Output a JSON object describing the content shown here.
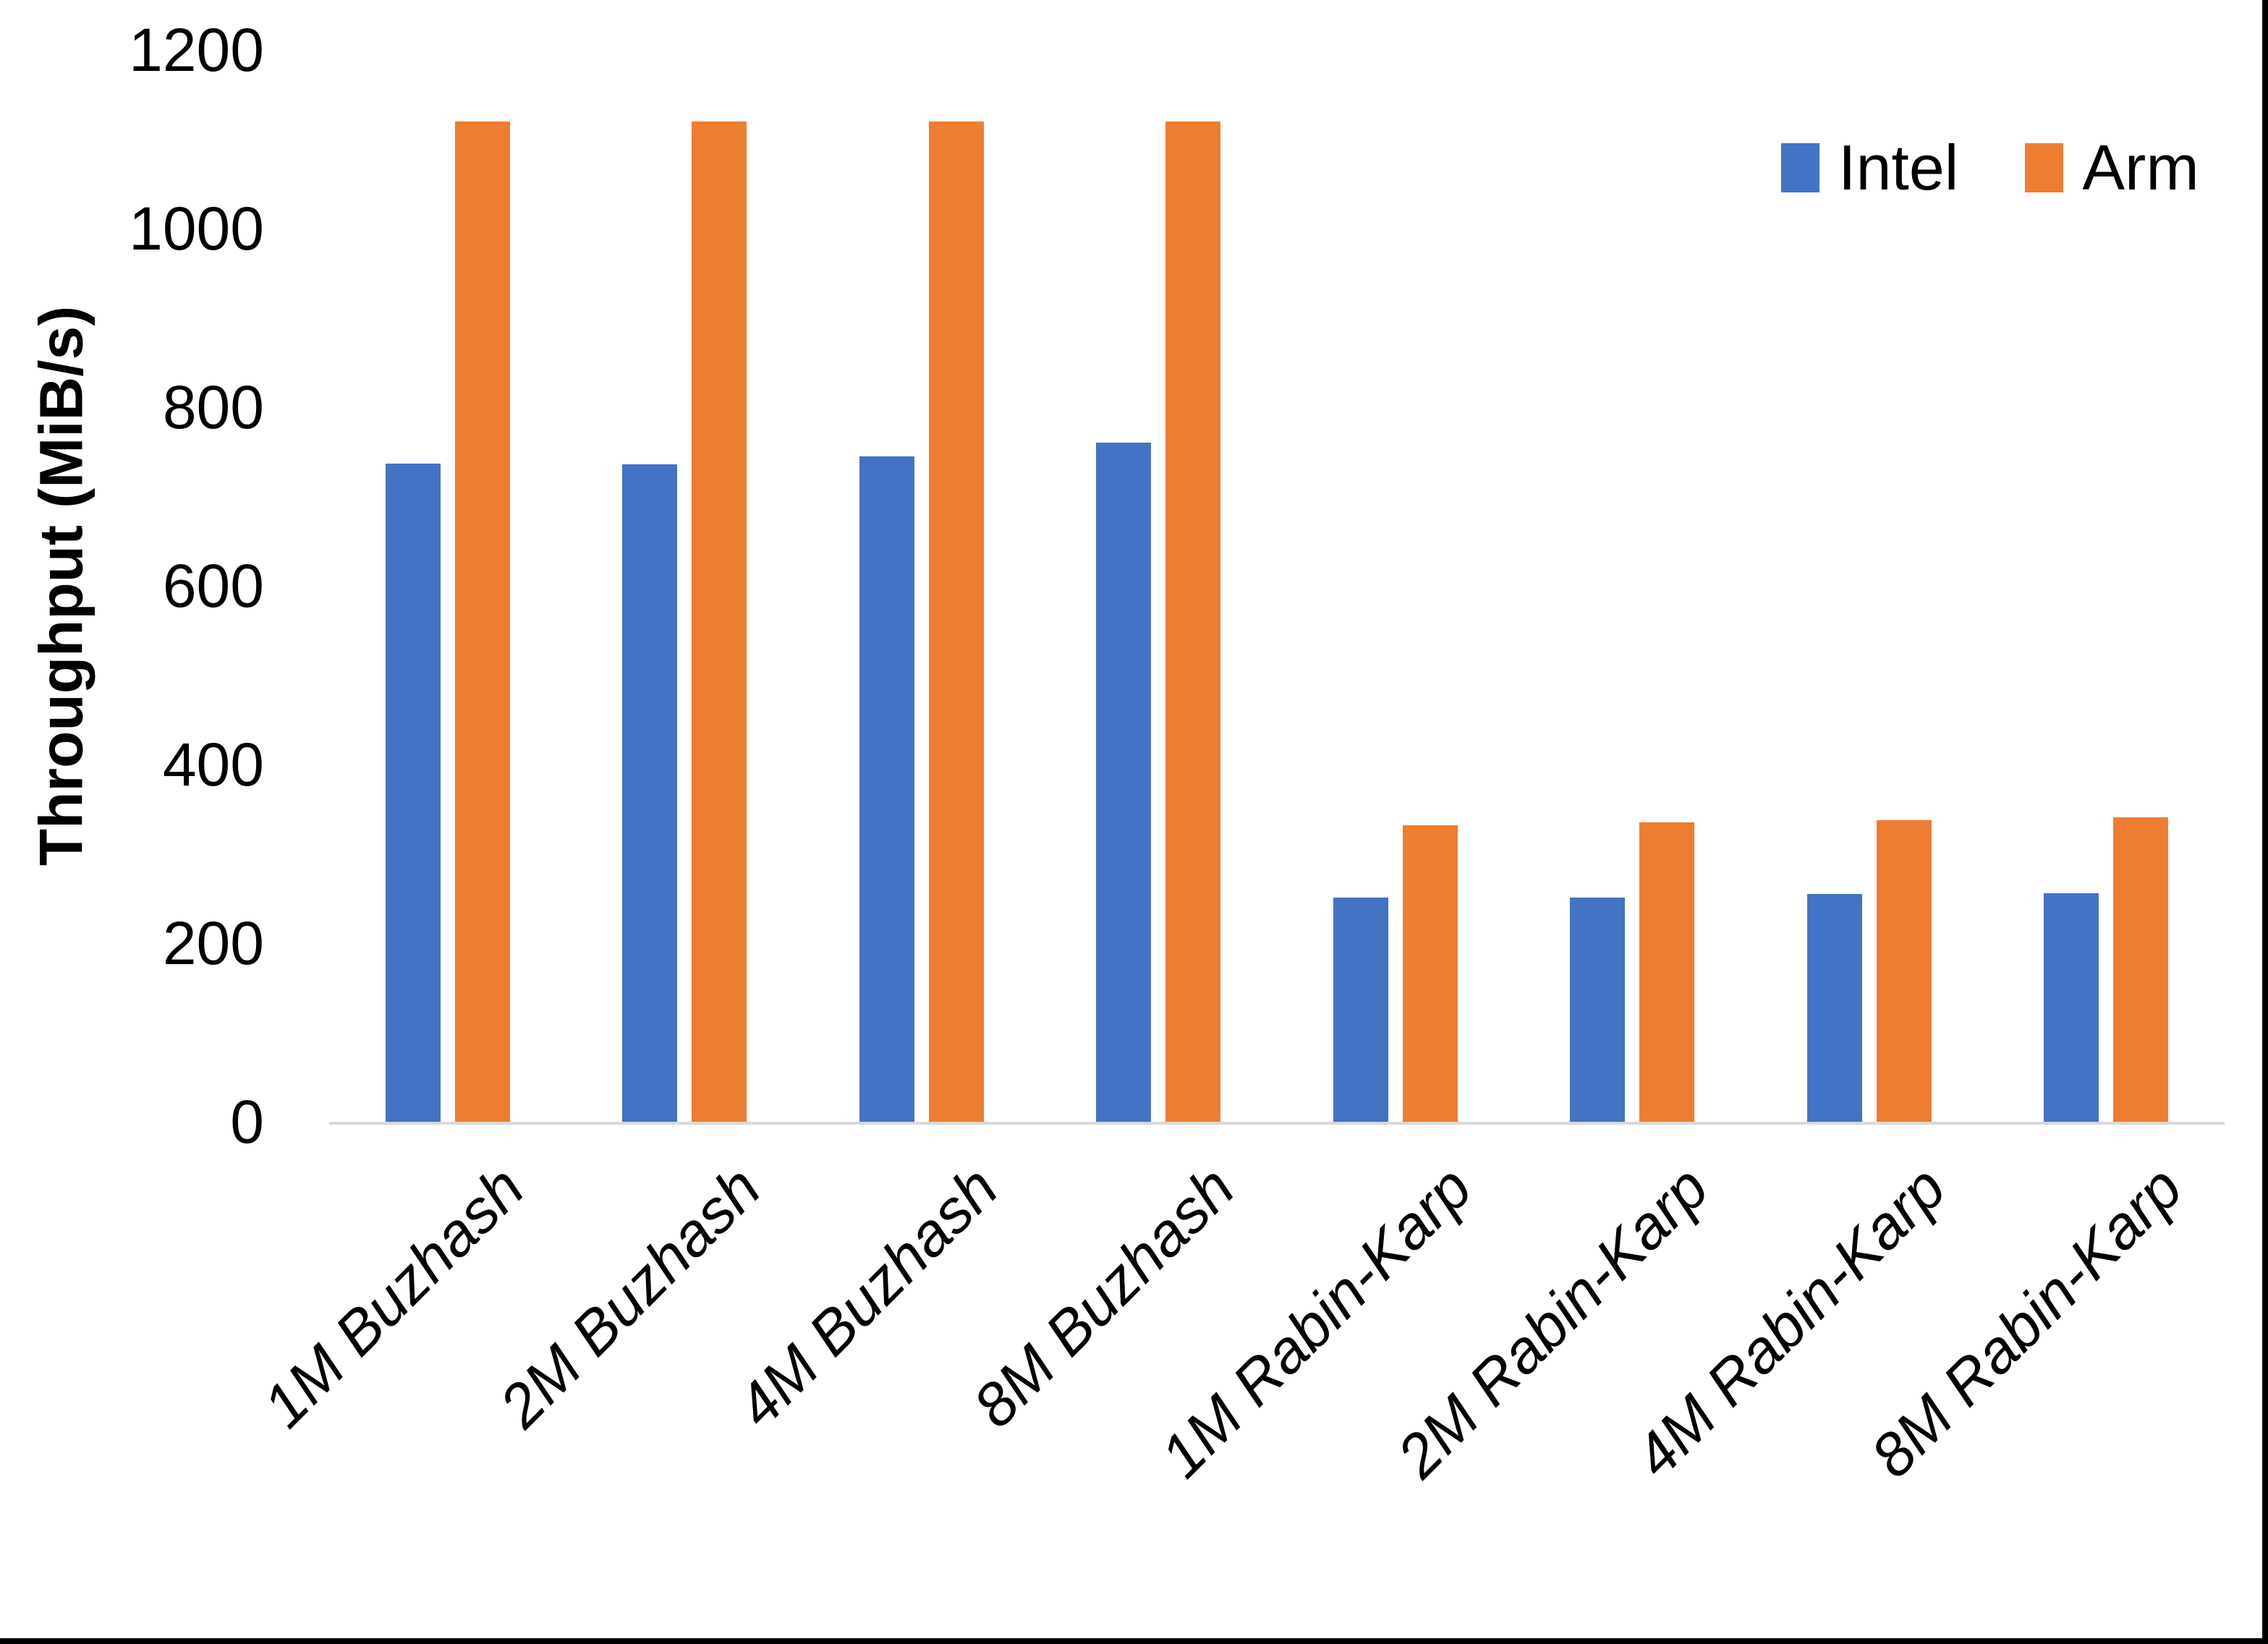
{
  "chart_data": {
    "type": "bar",
    "title": "",
    "xlabel": "",
    "ylabel": "Throughput (MiB/s)",
    "ylim": [
      0,
      1200
    ],
    "yticks": [
      0,
      200,
      400,
      600,
      800,
      1000,
      1200
    ],
    "grid": false,
    "legend_position": "top-right",
    "categories": [
      "1M Buzhash",
      "2M Buzhash",
      "4M Buzhash",
      "8M Buzhash",
      "1M Rabin-Karp",
      "2M Rabin-Karp",
      "4M Rabin-Karp",
      "8M Rabin-Karp"
    ],
    "series": [
      {
        "name": "Intel",
        "color": "#4472C4",
        "values": [
          737,
          736,
          745,
          760,
          251,
          251,
          255,
          256
        ]
      },
      {
        "name": "Arm",
        "color": "#ED7D31",
        "values": [
          1120,
          1120,
          1120,
          1120,
          332,
          335,
          338,
          341
        ]
      }
    ]
  },
  "colors": {
    "axis_line": "#D9D9D9",
    "text": "#000000",
    "background": "#FFFFFF",
    "page_border": "#000000"
  }
}
